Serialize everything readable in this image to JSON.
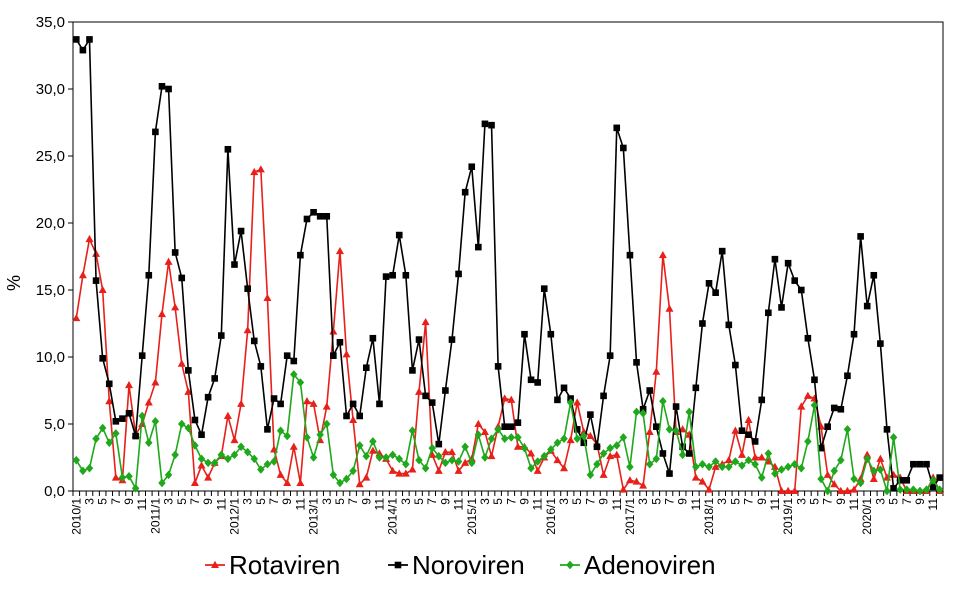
{
  "chart_data": {
    "type": "line",
    "ylabel": "%",
    "ylim": [
      0,
      35
    ],
    "yticks": [
      "0,0",
      "5,0",
      "10,0",
      "15,0",
      "20,0",
      "25,0",
      "30,0",
      "35,0"
    ],
    "x": [
      "2010/1",
      "2010/2",
      "2010/3",
      "2010/4",
      "2010/5",
      "2010/6",
      "2010/7",
      "2010/8",
      "2010/9",
      "2010/10",
      "2010/11",
      "2010/12",
      "2011/1",
      "2011/2",
      "2011/3",
      "2011/4",
      "2011/5",
      "2011/6",
      "2011/7",
      "2011/8",
      "2011/9",
      "2011/10",
      "2011/11",
      "2011/12",
      "2012/1",
      "2012/2",
      "2012/3",
      "2012/4",
      "2012/5",
      "2012/6",
      "2012/7",
      "2012/8",
      "2012/9",
      "2012/10",
      "2012/11",
      "2012/12",
      "2013/1",
      "2013/2",
      "2013/3",
      "2013/4",
      "2013/5",
      "2013/6",
      "2013/7",
      "2013/8",
      "2013/9",
      "2013/10",
      "2013/11",
      "2013/12",
      "2014/1",
      "2014/2",
      "2014/3",
      "2014/4",
      "2014/5",
      "2014/6",
      "2014/7",
      "2014/8",
      "2014/9",
      "2014/10",
      "2014/11",
      "2014/12",
      "2015/1",
      "2015/2",
      "2015/3",
      "2015/4",
      "2015/5",
      "2015/6",
      "2015/7",
      "2015/8",
      "2015/9",
      "2015/10",
      "2015/11",
      "2015/12",
      "2016/1",
      "2016/2",
      "2016/3",
      "2016/4",
      "2016/5",
      "2016/6",
      "2016/7",
      "2016/8",
      "2016/9",
      "2016/10",
      "2016/11",
      "2016/12",
      "2017/1",
      "2017/2",
      "2017/3",
      "2017/4",
      "2017/5",
      "2017/6",
      "2017/7",
      "2017/8",
      "2017/9",
      "2017/10",
      "2017/11",
      "2017/12",
      "2018/1",
      "2018/2",
      "2018/3",
      "2018/4",
      "2018/5",
      "2018/6",
      "2018/7",
      "2018/8",
      "2018/9",
      "2018/10",
      "2018/11",
      "2018/12",
      "2019/1",
      "2019/2",
      "2019/3",
      "2019/4",
      "2019/5",
      "2019/6",
      "2019/7",
      "2019/8",
      "2019/9",
      "2019/10",
      "2019/11",
      "2019/12",
      "2020/1",
      "2020/2",
      "2020/3",
      "2020/4",
      "2020/5",
      "2020/6",
      "2020/7",
      "2020/8",
      "2020/9",
      "2020/10",
      "2020/11",
      "2020/12"
    ],
    "x_tick_labels": [
      "2010/1",
      "3",
      "5",
      "7",
      "9",
      "11",
      "2011/1",
      "3",
      "5",
      "7",
      "9",
      "11",
      "2012/1",
      "3",
      "5",
      "7",
      "9",
      "11",
      "2013/1",
      "3",
      "5",
      "7",
      "9",
      "11",
      "2014/1",
      "3",
      "5",
      "7",
      "9",
      "11",
      "2015/1",
      "3",
      "5",
      "7",
      "9",
      "11",
      "2016/1",
      "3",
      "5",
      "7",
      "9",
      "11",
      "2017/1",
      "3",
      "5",
      "7",
      "9",
      "11",
      "2018/1",
      "3",
      "5",
      "7",
      "9",
      "11",
      "2019/1",
      "3",
      "5",
      "7",
      "9",
      "11",
      "2020/1",
      "3",
      "5",
      "7",
      "9",
      "11"
    ],
    "grid": false,
    "legend_position": "bottom",
    "series": [
      {
        "name": "Rotaviren",
        "color": "#e8201a",
        "marker": "triangle",
        "values": [
          12.9,
          16.1,
          18.8,
          17.7,
          15.0,
          6.7,
          1.0,
          0.8,
          7.9,
          4.2,
          5.0,
          6.6,
          8.1,
          13.2,
          17.1,
          13.7,
          9.5,
          7.4,
          0.6,
          1.9,
          1.0,
          2.1,
          2.6,
          5.6,
          3.8,
          6.5,
          12.0,
          23.8,
          24.0,
          14.4,
          3.1,
          1.2,
          0.6,
          3.3,
          0.6,
          6.7,
          6.5,
          3.8,
          6.3,
          11.9,
          17.9,
          10.2,
          5.3,
          0.5,
          1.0,
          3.0,
          2.8,
          2.4,
          1.5,
          1.3,
          1.3,
          1.6,
          7.4,
          12.6,
          2.7,
          1.5,
          2.9,
          2.9,
          1.5,
          2.1,
          2.4,
          5.0,
          4.4,
          2.6,
          4.8,
          6.9,
          6.8,
          3.3,
          3.3,
          2.8,
          1.5,
          2.5,
          3.0,
          2.3,
          1.7,
          3.8,
          6.6,
          4.4,
          4.1,
          3.5,
          1.2,
          2.6,
          2.7,
          0.1,
          0.8,
          0.7,
          0.4,
          4.4,
          8.9,
          17.6,
          13.6,
          4.4,
          4.6,
          4.2,
          1.0,
          0.7,
          0.1,
          1.8,
          2.0,
          2.3,
          4.5,
          2.7,
          5.3,
          2.5,
          2.5,
          2.2,
          1.8,
          0.0,
          0.0,
          0.0,
          6.3,
          7.1,
          6.9,
          4.8,
          1.2,
          0.5,
          0.0,
          0.0,
          0.1,
          0.9,
          2.7,
          0.9,
          2.4,
          1.0,
          1.2,
          1.0,
          0.0,
          0.0,
          0.0,
          0.0,
          1.0,
          0.0
        ]
      },
      {
        "name": "Noroviren",
        "color": "#000000",
        "marker": "square",
        "values": [
          33.7,
          32.9,
          33.7,
          15.7,
          9.9,
          8.0,
          5.2,
          5.4,
          5.8,
          4.1,
          10.1,
          16.1,
          26.8,
          30.2,
          30.0,
          17.8,
          15.9,
          9.0,
          5.3,
          4.2,
          7.0,
          8.4,
          11.6,
          25.5,
          16.9,
          19.4,
          15.1,
          11.2,
          9.3,
          4.6,
          6.9,
          6.5,
          10.1,
          9.7,
          17.6,
          20.3,
          20.8,
          20.5,
          20.5,
          10.1,
          11.1,
          5.6,
          6.5,
          5.6,
          9.2,
          11.4,
          6.5,
          16.0,
          16.1,
          19.1,
          16.1,
          9.0,
          11.3,
          7.1,
          6.6,
          3.5,
          7.5,
          11.3,
          16.2,
          22.3,
          24.2,
          18.2,
          27.4,
          27.3,
          9.3,
          4.8,
          4.8,
          5.1,
          11.7,
          8.3,
          8.1,
          15.1,
          11.7,
          6.8,
          7.7,
          6.9,
          4.6,
          3.6,
          5.7,
          3.3,
          7.1,
          10.1,
          27.1,
          25.6,
          17.6,
          9.6,
          6.1,
          7.5,
          4.8,
          2.8,
          1.3,
          6.3,
          3.3,
          2.8,
          7.7,
          12.5,
          15.5,
          14.8,
          17.9,
          12.4,
          9.4,
          4.5,
          4.2,
          3.7,
          6.8,
          13.3,
          17.3,
          13.7,
          17.0,
          15.7,
          15.0,
          11.4,
          8.3,
          3.2,
          4.8,
          6.2,
          6.1,
          8.6,
          11.7,
          19.0,
          13.8,
          16.1,
          11.0,
          4.6,
          0.2,
          0.8,
          0.8,
          2.0,
          2.0,
          2.0,
          0.3,
          1.0
        ]
      },
      {
        "name": "Adenoviren",
        "color": "#1fa81b",
        "marker": "diamond",
        "values": [
          2.3,
          1.5,
          1.7,
          3.9,
          4.7,
          3.6,
          4.3,
          1.0,
          1.1,
          0.2,
          5.6,
          3.6,
          5.2,
          0.6,
          1.2,
          2.7,
          5.0,
          4.7,
          3.4,
          2.4,
          2.1,
          2.1,
          2.7,
          2.4,
          2.7,
          3.3,
          2.9,
          2.4,
          1.6,
          2.0,
          2.2,
          4.5,
          4.1,
          8.7,
          8.1,
          4.0,
          2.5,
          4.2,
          5.0,
          1.2,
          0.6,
          0.9,
          1.5,
          3.4,
          2.6,
          3.7,
          2.5,
          2.5,
          2.7,
          2.4,
          2.0,
          4.5,
          2.3,
          1.7,
          3.2,
          2.6,
          2.1,
          2.3,
          2.2,
          3.3,
          2.1,
          4.2,
          2.5,
          3.9,
          4.6,
          3.9,
          4.0,
          4.0,
          3.2,
          1.7,
          2.2,
          2.6,
          3.1,
          3.6,
          3.9,
          6.6,
          3.9,
          4.1,
          1.2,
          2.0,
          2.8,
          3.2,
          3.4,
          4.0,
          1.8,
          5.9,
          5.8,
          2.0,
          2.4,
          6.7,
          4.6,
          4.5,
          2.7,
          5.9,
          1.8,
          2.0,
          1.8,
          2.2,
          1.8,
          1.8,
          2.2,
          1.9,
          2.3,
          2.0,
          1.0,
          2.8,
          1.3,
          1.6,
          1.8,
          2.0,
          1.7,
          3.7,
          6.4,
          0.9,
          0.0,
          1.5,
          2.3,
          4.6,
          0.9,
          0.6,
          2.4,
          1.5,
          1.6,
          0.0,
          4.0,
          0.1,
          0.1,
          0.1,
          0.0,
          0.1,
          0.8,
          0.1
        ]
      }
    ]
  }
}
